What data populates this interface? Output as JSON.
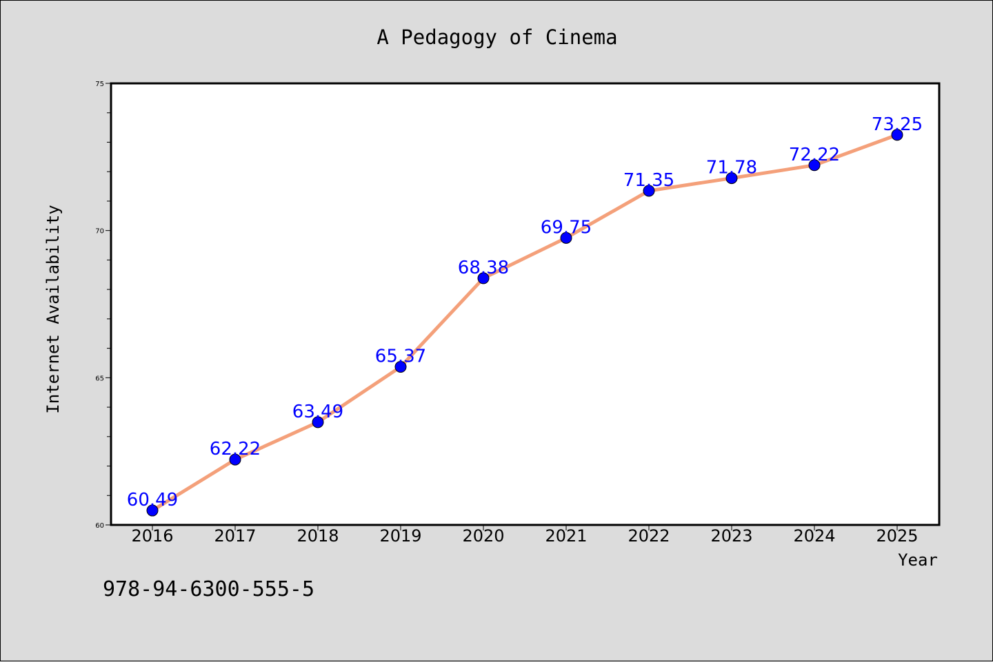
{
  "chart_data": {
    "type": "line",
    "title": "A Pedagogy of Cinema",
    "xlabel": "Year",
    "ylabel": "Internet Availability",
    "categories": [
      "2016",
      "2017",
      "2018",
      "2019",
      "2020",
      "2021",
      "2022",
      "2023",
      "2024",
      "2025"
    ],
    "values": [
      60.49,
      62.22,
      63.49,
      65.37,
      68.38,
      69.75,
      71.35,
      71.78,
      72.22,
      73.25
    ],
    "data_labels": [
      "60.49",
      "62.22",
      "63.49",
      "65.37",
      "68.38",
      "69.75",
      "71.35",
      "71.78",
      "72.22",
      "73.25"
    ],
    "ylim": [
      60,
      75
    ],
    "yticks": [
      "60",
      "65",
      "70",
      "75"
    ],
    "grid": false,
    "line_color": "#f4a07a",
    "marker_color": "#0000ff",
    "label_color": "#0000ff"
  },
  "footer": {
    "isbn": "978-94-6300-555-5"
  }
}
